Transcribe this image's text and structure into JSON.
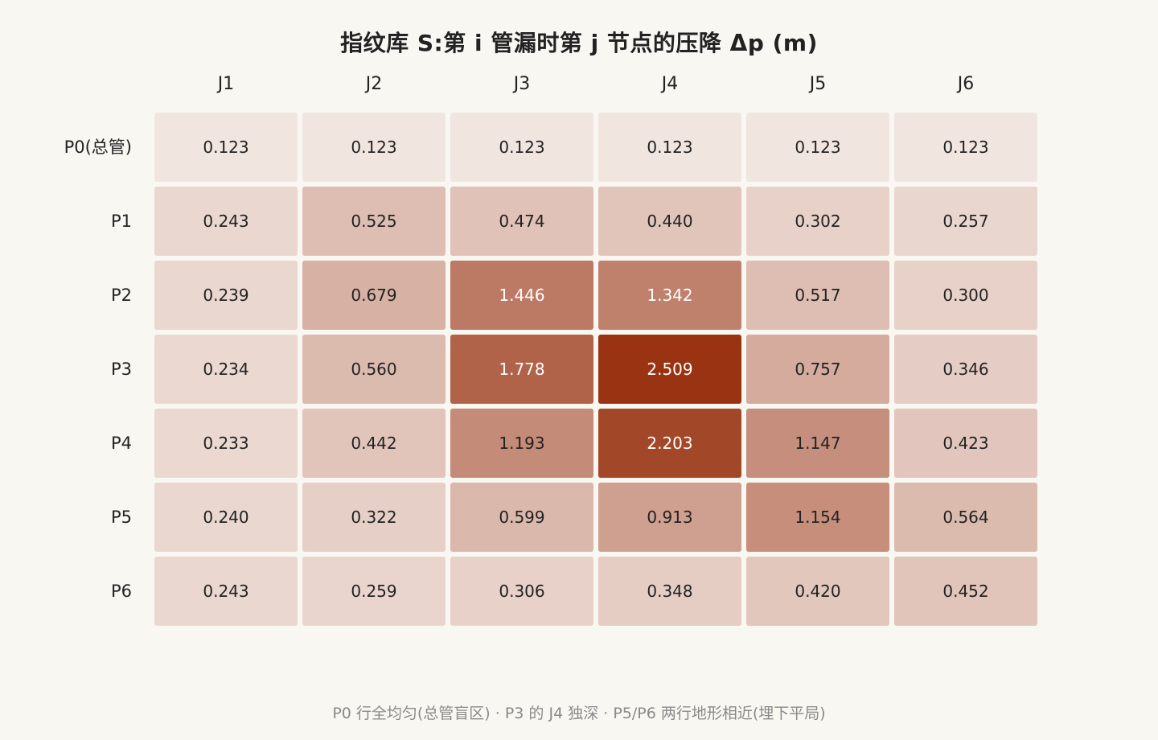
{
  "chart_data": {
    "type": "heatmap",
    "title": "指纹库 S:第 i 管漏时第 j 节点的压降 Δp (m)",
    "columns": [
      "J1",
      "J2",
      "J3",
      "J4",
      "J5",
      "J6"
    ],
    "rows": [
      "P0(总管)",
      "P1",
      "P2",
      "P3",
      "P4",
      "P5",
      "P6"
    ],
    "values": [
      [
        "0.123",
        "0.123",
        "0.123",
        "0.123",
        "0.123",
        "0.123"
      ],
      [
        "0.243",
        "0.525",
        "0.474",
        "0.440",
        "0.302",
        "0.257"
      ],
      [
        "0.239",
        "0.679",
        "1.446",
        "1.342",
        "0.517",
        "0.300"
      ],
      [
        "0.234",
        "0.560",
        "1.778",
        "2.509",
        "0.757",
        "0.346"
      ],
      [
        "0.233",
        "0.442",
        "1.193",
        "2.203",
        "1.147",
        "0.423"
      ],
      [
        "0.240",
        "0.322",
        "0.599",
        "0.913",
        "1.154",
        "0.564"
      ],
      [
        "0.243",
        "0.259",
        "0.306",
        "0.348",
        "0.420",
        "0.452"
      ]
    ],
    "color_low": "#f1e5e0",
    "color_high": "#993312",
    "text_dark": "#222222",
    "text_light": "#ffffff"
  },
  "footnote": "P0 行全均匀(总管盲区) · P3 的 J4 独深 · P5/P6 两行地形相近(埋下平局)"
}
